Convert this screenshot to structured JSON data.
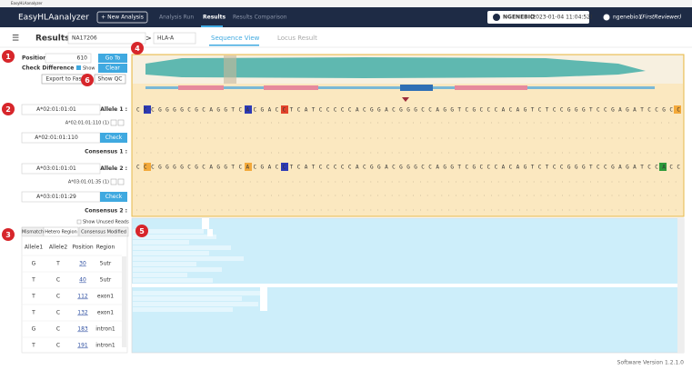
{
  "window_title": "EasyHLAanalyzer",
  "nav": {
    "logo": "EasyHLAanalyzer",
    "new_analysis": "+ New Analysis",
    "tabs": [
      "Analysis Run",
      "Results",
      "Results Comparison"
    ],
    "org": "NGENEBIO",
    "timestamp": "(2023-01-04 11:04:52)",
    "user": "ngenebio1",
    "role": "(FirstReviewer)"
  },
  "subbar": {
    "title": "Results",
    "sample": "NA17206",
    "separator": ">",
    "locus": "HLA-A",
    "tabs": [
      "Sequence View",
      "Locus Result"
    ]
  },
  "controls": {
    "position_label": "Position",
    "position": 610,
    "goto": "Go To",
    "check_difference": "Check Difference",
    "show": "Show",
    "clear": "Clear",
    "export": "Export to Fasta",
    "show_qc": "Show QC"
  },
  "allele1": {
    "select": "A*02:01:01:01",
    "label": "Allele 1 :",
    "match": "A*02:01:01:110 (1)",
    "select2": "A*02:01:01:110",
    "check": "Check",
    "consensus": "Consensus 1 :"
  },
  "allele2": {
    "select": "A*03:01:01:01",
    "label": "Allele 2 :",
    "match": "A*03:01:01:35 (1)",
    "select2": "A*03:01:01:29",
    "check": "Check",
    "consensus": "Consensus 2 :"
  },
  "sequences": {
    "allele1": "CCCGGGGCGCAGGTCACGACCTCATCCCCCACGGACGGGCCAGGTCGCCCACAGTCTCCGGGTCCGAGATCCGCC",
    "allele2": "CCCGGGGCGCAGGTCACGACCTCATCCCCCACGGACGGGCCAGGTCGCCCACAGTCTCCGGGTCCGAGATCCACC"
  },
  "show_unused": "Show Unused Reads",
  "table": {
    "tabs": [
      "Mismatch",
      "Hetero Region",
      "Consensus Modified"
    ],
    "header": [
      "Allele1",
      "Allele2",
      "Position",
      "Region"
    ],
    "rows": [
      [
        "G",
        "T",
        30,
        "5utr"
      ],
      [
        "T",
        "C",
        40,
        "5utr"
      ],
      [
        "T",
        "C",
        112,
        "exon1"
      ],
      [
        "T",
        "C",
        132,
        "exon1"
      ],
      [
        "G",
        "C",
        183,
        "intron1"
      ],
      [
        "T",
        "C",
        191,
        "intron1"
      ]
    ]
  },
  "badges": [
    "1",
    "2",
    "3",
    "4",
    "5",
    "6"
  ],
  "footer": "Software Version 1.2.1.0"
}
